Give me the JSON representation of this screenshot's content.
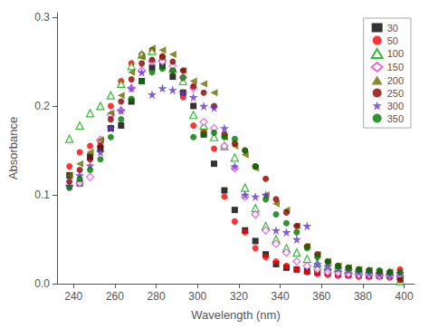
{
  "chart_data": {
    "type": "scatter",
    "xlabel": "Wavelength (nm)",
    "ylabel": "Absorbance",
    "xlim": [
      232,
      405
    ],
    "ylim": [
      0.0,
      0.305
    ],
    "xticks": [
      240,
      260,
      280,
      300,
      320,
      340,
      360,
      380,
      400
    ],
    "yticks": [
      {
        "value": 0.0,
        "label": "0.0"
      },
      0.1,
      0.2,
      0.3
    ],
    "grid": false,
    "legend": "upper right",
    "series": [
      {
        "name": "30",
        "color": "#000000",
        "marker": "square",
        "x": [
          238,
          243,
          248,
          253,
          258,
          263,
          268,
          273,
          278,
          283,
          288,
          293,
          298,
          303,
          308,
          313,
          318,
          323,
          328,
          333,
          338,
          343,
          348,
          353,
          358,
          363,
          368,
          373,
          378,
          383,
          388,
          393,
          398
        ],
        "values": [
          0.122,
          0.113,
          0.143,
          0.152,
          0.175,
          0.178,
          0.205,
          0.228,
          0.243,
          0.245,
          0.233,
          0.215,
          0.2,
          0.168,
          0.135,
          0.105,
          0.083,
          0.06,
          0.048,
          0.033,
          0.022,
          0.018,
          0.016,
          0.014,
          0.013,
          0.012,
          0.011,
          0.01,
          0.01,
          0.009,
          0.009,
          0.009,
          0.008
        ]
      },
      {
        "name": "50",
        "color": "#ff0000",
        "marker": "circle",
        "x": [
          238,
          243,
          248,
          253,
          258,
          263,
          268,
          273,
          278,
          283,
          288,
          293,
          298,
          303,
          308,
          313,
          318,
          323,
          328,
          333,
          338,
          343,
          348,
          353,
          358,
          363,
          368,
          373,
          378,
          383,
          388,
          393,
          398
        ],
        "values": [
          0.132,
          0.148,
          0.155,
          0.16,
          0.2,
          0.228,
          0.248,
          0.258,
          0.263,
          0.256,
          0.24,
          0.21,
          0.178,
          0.172,
          0.152,
          0.098,
          0.07,
          0.058,
          0.04,
          0.03,
          0.025,
          0.02,
          0.016,
          0.013,
          0.011,
          0.01,
          0.009,
          0.009,
          0.008,
          0.008,
          0.008,
          0.007,
          0.016
        ]
      },
      {
        "name": "100",
        "color": "#00aa00",
        "marker": "triangle-up-open",
        "x": [
          238,
          243,
          248,
          253,
          258,
          263,
          268,
          273,
          278,
          283,
          288,
          293,
          298,
          303,
          308,
          313,
          318,
          323,
          328,
          333,
          338,
          343,
          348,
          353,
          358,
          363,
          368,
          373,
          378,
          383,
          388,
          393,
          398
        ],
        "values": [
          0.163,
          0.178,
          0.192,
          0.2,
          0.212,
          0.225,
          0.245,
          0.258,
          0.262,
          0.255,
          0.242,
          0.228,
          0.19,
          0.178,
          0.165,
          0.155,
          0.142,
          0.108,
          0.085,
          0.065,
          0.05,
          0.04,
          0.035,
          0.028,
          0.023,
          0.02,
          0.018,
          0.016,
          0.015,
          0.014,
          0.013,
          0.013,
          0.003
        ]
      },
      {
        "name": "150",
        "color": "#dd44dd",
        "marker": "diamond-open",
        "x": [
          238,
          243,
          248,
          253,
          258,
          263,
          268,
          273,
          278,
          283,
          288,
          293,
          298,
          303,
          308,
          313,
          318,
          323,
          328,
          333,
          338,
          343,
          348,
          353,
          358,
          363,
          368,
          373,
          378,
          383,
          388,
          393,
          398
        ],
        "values": [
          0.11,
          0.113,
          0.12,
          0.162,
          0.19,
          0.195,
          0.22,
          0.24,
          0.25,
          0.25,
          0.245,
          0.232,
          0.22,
          0.182,
          0.175,
          0.155,
          0.13,
          0.098,
          0.078,
          0.06,
          0.045,
          0.035,
          0.025,
          0.02,
          0.016,
          0.013,
          0.012,
          0.011,
          0.01,
          0.01,
          0.009,
          0.009,
          0.009
        ]
      },
      {
        "name": "200",
        "color": "#6b6b00",
        "marker": "triangle-left",
        "x": [
          238,
          243,
          248,
          253,
          258,
          263,
          268,
          273,
          278,
          283,
          288,
          293,
          298,
          303,
          308,
          313,
          318,
          323,
          328,
          333,
          338,
          343,
          348,
          353,
          358,
          363,
          368,
          373,
          378,
          383,
          388,
          393,
          398
        ],
        "values": [
          0.122,
          0.135,
          0.148,
          0.162,
          0.192,
          0.212,
          0.238,
          0.255,
          0.265,
          0.263,
          0.258,
          0.24,
          0.228,
          0.225,
          0.215,
          0.165,
          0.155,
          0.145,
          0.13,
          0.1,
          0.09,
          0.083,
          0.065,
          0.042,
          0.033,
          0.025,
          0.02,
          0.018,
          0.016,
          0.015,
          0.013,
          0.013,
          0.005
        ]
      },
      {
        "name": "250",
        "color": "#8b0000",
        "marker": "circle",
        "x": [
          238,
          243,
          248,
          253,
          258,
          263,
          268,
          273,
          278,
          283,
          288,
          293,
          298,
          303,
          308,
          313,
          318,
          323,
          328,
          333,
          338,
          343,
          348,
          353,
          358,
          363,
          368,
          373,
          378,
          383,
          388,
          393,
          398
        ],
        "values": [
          0.115,
          0.128,
          0.14,
          0.155,
          0.185,
          0.205,
          0.23,
          0.248,
          0.252,
          0.255,
          0.25,
          0.24,
          0.222,
          0.215,
          0.2,
          0.168,
          0.158,
          0.15,
          0.132,
          0.118,
          0.095,
          0.08,
          0.065,
          0.042,
          0.033,
          0.025,
          0.02,
          0.018,
          0.016,
          0.015,
          0.013,
          0.013,
          0.004
        ]
      },
      {
        "name": "300",
        "color": "#6633cc",
        "marker": "star",
        "x": [
          238,
          243,
          248,
          253,
          258,
          263,
          268,
          273,
          278,
          283,
          288,
          293,
          298,
          303,
          308,
          313,
          318,
          323,
          328,
          333,
          338,
          343,
          348,
          353,
          358,
          363,
          368,
          373,
          378,
          383,
          388,
          393,
          398
        ],
        "values": [
          0.11,
          0.122,
          0.133,
          0.148,
          0.175,
          0.195,
          0.22,
          0.238,
          0.213,
          0.22,
          0.218,
          0.215,
          0.21,
          0.2,
          0.198,
          0.175,
          0.132,
          0.1,
          0.098,
          0.1,
          0.06,
          0.058,
          0.05,
          0.065,
          0.022,
          0.02,
          0.017,
          0.015,
          0.013,
          0.012,
          0.011,
          0.01,
          0.012
        ]
      },
      {
        "name": "350",
        "color": "#007700",
        "marker": "circle",
        "x": [
          238,
          243,
          248,
          253,
          258,
          263,
          268,
          273,
          278,
          283,
          288,
          293,
          298,
          303,
          308,
          313,
          318,
          323,
          328,
          333,
          338,
          343,
          348,
          353,
          358,
          363,
          368,
          373,
          378,
          383,
          388,
          393,
          398
        ],
        "values": [
          0.108,
          0.118,
          0.128,
          0.14,
          0.165,
          0.185,
          0.208,
          0.228,
          0.238,
          0.242,
          0.24,
          0.232,
          0.165,
          0.168,
          0.17,
          0.165,
          0.163,
          0.15,
          0.132,
          0.095,
          0.078,
          0.068,
          0.058,
          0.04,
          0.03,
          0.025,
          0.02,
          0.018,
          0.016,
          0.015,
          0.015,
          0.013,
          0.013
        ]
      }
    ]
  }
}
